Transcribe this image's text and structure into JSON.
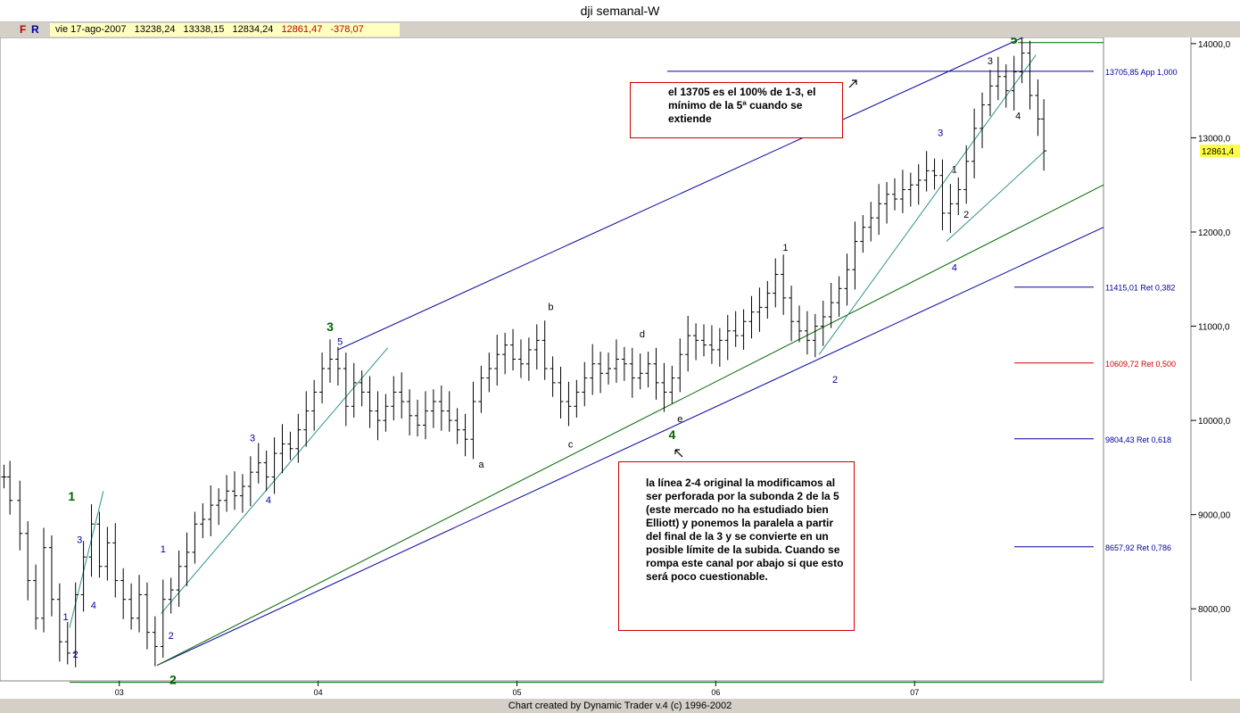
{
  "window": {
    "title": "dji semanal-W"
  },
  "infobar": {
    "f_label": "F",
    "r_label": "R",
    "date": "vie 17-ago-2007",
    "open": "13238,24",
    "high": "13338,15",
    "low": "12834,24",
    "close": "12861,47",
    "change": "-378,07"
  },
  "footer": {
    "text": "Chart created by Dynamic Trader v.4  (c) 1996-2002"
  },
  "annotations": {
    "note1": "el 13705 es el 100% de 1-3, el mínimo de la 5ª cuando se extiende",
    "note2": "la línea 2-4 original la modificamos al ser perforada por la subonda 2 de la 5 (este mercado no ha estudiado bien Elliott) y ponemos la paralela a partir del final de la 3 y se convierte en un posible límite de la subida. Cuando se rompa este canal por abajo si que esto será poco cuestionable."
  },
  "colors": {
    "blue_line": "#0000a0",
    "teal_line": "#2f8f8f",
    "green_line": "#006400",
    "red_line": "#d00000",
    "price_bar": "#000000",
    "close_marker": "#ffff40"
  },
  "chart_data": {
    "type": "bar",
    "title": "dji semanal-W",
    "xlabel": "",
    "ylabel": "",
    "x_ticks": [
      "03",
      "04",
      "05",
      "06",
      "07"
    ],
    "y_ticks": [
      {
        "value": 8000,
        "label": "8000,00"
      },
      {
        "value": 9000,
        "label": "9000,00"
      },
      {
        "value": 10000,
        "label": "10000,0"
      },
      {
        "value": 11000,
        "label": "11000,0"
      },
      {
        "value": 12000,
        "label": "12000,0"
      },
      {
        "value": 13000,
        "label": "13000,0"
      },
      {
        "value": 14000,
        "label": "14000,0"
      }
    ],
    "ylim": [
      7235,
      14065
    ],
    "xlim": [
      2002.4,
      2007.95
    ],
    "grid": false,
    "last_price": {
      "value": 12861.47,
      "label": "12861,4"
    },
    "series": [
      {
        "values": [
          [
            2002.42,
            9400
          ],
          [
            2002.45,
            9150
          ],
          [
            2002.5,
            8800
          ],
          [
            2002.54,
            8300
          ],
          [
            2002.58,
            7900
          ],
          [
            2002.62,
            8650
          ],
          [
            2002.66,
            8100
          ],
          [
            2002.7,
            7650
          ],
          [
            2002.74,
            7530
          ],
          [
            2002.78,
            8150
          ],
          [
            2002.82,
            8550
          ],
          [
            2002.86,
            8900
          ],
          [
            2002.9,
            8450
          ],
          [
            2002.94,
            8700
          ],
          [
            2002.98,
            8300
          ],
          [
            2003.02,
            8100
          ],
          [
            2003.06,
            7900
          ],
          [
            2003.1,
            8150
          ],
          [
            2003.14,
            7750
          ],
          [
            2003.18,
            7600
          ],
          [
            2003.22,
            8100
          ],
          [
            2003.26,
            8200
          ],
          [
            2003.3,
            8450
          ],
          [
            2003.34,
            8600
          ],
          [
            2003.38,
            8900
          ],
          [
            2003.42,
            8950
          ],
          [
            2003.46,
            9100
          ],
          [
            2003.5,
            9150
          ],
          [
            2003.54,
            9250
          ],
          [
            2003.58,
            9200
          ],
          [
            2003.62,
            9300
          ],
          [
            2003.66,
            9450
          ],
          [
            2003.7,
            9550
          ],
          [
            2003.74,
            9400
          ],
          [
            2003.78,
            9650
          ],
          [
            2003.82,
            9750
          ],
          [
            2003.86,
            9700
          ],
          [
            2003.9,
            9900
          ],
          [
            2003.94,
            10100
          ],
          [
            2003.98,
            10300
          ],
          [
            2004.02,
            10550
          ],
          [
            2004.06,
            10650
          ],
          [
            2004.1,
            10550
          ],
          [
            2004.14,
            10150
          ],
          [
            2004.18,
            10400
          ],
          [
            2004.22,
            10300
          ],
          [
            2004.26,
            10100
          ],
          [
            2004.3,
            10000
          ],
          [
            2004.34,
            10150
          ],
          [
            2004.38,
            10300
          ],
          [
            2004.42,
            10200
          ],
          [
            2004.46,
            10050
          ],
          [
            2004.5,
            9950
          ],
          [
            2004.54,
            10100
          ],
          [
            2004.58,
            10200
          ],
          [
            2004.62,
            10100
          ],
          [
            2004.66,
            10000
          ],
          [
            2004.7,
            9900
          ],
          [
            2004.74,
            9800
          ],
          [
            2004.78,
            10200
          ],
          [
            2004.82,
            10450
          ],
          [
            2004.86,
            10550
          ],
          [
            2004.9,
            10700
          ],
          [
            2004.94,
            10800
          ],
          [
            2004.98,
            10650
          ],
          [
            2005.02,
            10600
          ],
          [
            2005.06,
            10750
          ],
          [
            2005.1,
            10850
          ],
          [
            2005.14,
            10550
          ],
          [
            2005.18,
            10400
          ],
          [
            2005.22,
            10200
          ],
          [
            2005.26,
            10150
          ],
          [
            2005.3,
            10300
          ],
          [
            2005.34,
            10450
          ],
          [
            2005.38,
            10600
          ],
          [
            2005.42,
            10500
          ],
          [
            2005.46,
            10550
          ],
          [
            2005.5,
            10650
          ],
          [
            2005.54,
            10600
          ],
          [
            2005.58,
            10450
          ],
          [
            2005.62,
            10500
          ],
          [
            2005.66,
            10600
          ],
          [
            2005.7,
            10400
          ],
          [
            2005.74,
            10300
          ],
          [
            2005.78,
            10450
          ],
          [
            2005.82,
            10700
          ],
          [
            2005.86,
            10900
          ],
          [
            2005.9,
            10850
          ],
          [
            2005.94,
            10800
          ],
          [
            2005.98,
            10750
          ],
          [
            2006.02,
            10850
          ],
          [
            2006.06,
            10950
          ],
          [
            2006.1,
            10900
          ],
          [
            2006.14,
            11050
          ],
          [
            2006.18,
            11150
          ],
          [
            2006.22,
            11200
          ],
          [
            2006.26,
            11350
          ],
          [
            2006.3,
            11550
          ],
          [
            2006.34,
            11300
          ],
          [
            2006.38,
            11050
          ],
          [
            2006.42,
            10950
          ],
          [
            2006.46,
            10850
          ],
          [
            2006.5,
            11000
          ],
          [
            2006.54,
            11100
          ],
          [
            2006.58,
            11250
          ],
          [
            2006.62,
            11400
          ],
          [
            2006.66,
            11600
          ],
          [
            2006.7,
            11900
          ],
          [
            2006.74,
            12050
          ],
          [
            2006.78,
            12150
          ],
          [
            2006.82,
            12300
          ],
          [
            2006.86,
            12400
          ],
          [
            2006.9,
            12350
          ],
          [
            2006.94,
            12450
          ],
          [
            2006.98,
            12500
          ],
          [
            2007.02,
            12550
          ],
          [
            2007.06,
            12650
          ],
          [
            2007.1,
            12600
          ],
          [
            2007.14,
            12200
          ],
          [
            2007.18,
            12300
          ],
          [
            2007.22,
            12450
          ],
          [
            2007.26,
            12750
          ],
          [
            2007.3,
            13100
          ],
          [
            2007.34,
            13350
          ],
          [
            2007.38,
            13550
          ],
          [
            2007.42,
            13650
          ],
          [
            2007.46,
            13500
          ],
          [
            2007.5,
            13700
          ],
          [
            2007.54,
            13900
          ],
          [
            2007.58,
            13450
          ],
          [
            2007.62,
            13200
          ],
          [
            2007.65,
            12861
          ]
        ]
      }
    ],
    "fib_levels": [
      {
        "value": 13705.85,
        "label": "13705,85 App 1,000",
        "color": "#0000a0"
      },
      {
        "value": 11415.01,
        "label": "11415,01 Ret 0,382",
        "color": "#0000a0"
      },
      {
        "value": 10609.72,
        "label": "10609,72 Ret 0,500",
        "color": "#d00000"
      },
      {
        "value": 9804.43,
        "label": "9804,43 Ret 0,618",
        "color": "#0000a0"
      },
      {
        "value": 8657.92,
        "label": "8657,92 Ret 0,786",
        "color": "#0000a0"
      }
    ],
    "wave_labels": [
      {
        "text": "1",
        "x": 2002.76,
        "y": 9150,
        "color": "#006400",
        "size": 14
      },
      {
        "text": "2",
        "x": 2003.27,
        "y": 7200,
        "color": "#006400",
        "size": 14
      },
      {
        "text": "3",
        "x": 2004.06,
        "y": 10950,
        "color": "#006400",
        "size": 14
      },
      {
        "text": "4",
        "x": 2005.78,
        "y": 9800,
        "color": "#006400",
        "size": 14
      },
      {
        "text": "5",
        "x": 2007.5,
        "y": 14000,
        "color": "#006400",
        "size": 14
      },
      {
        "text": "1",
        "x": 2002.73,
        "y": 7880,
        "color": "#0000a0",
        "size": 11
      },
      {
        "text": "2",
        "x": 2002.78,
        "y": 7480,
        "color": "#0000a0",
        "size": 11
      },
      {
        "text": "3",
        "x": 2002.8,
        "y": 8700,
        "color": "#0000a0",
        "size": 11
      },
      {
        "text": "4",
        "x": 2002.87,
        "y": 8000,
        "color": "#0000a0",
        "size": 11
      },
      {
        "text": "1",
        "x": 2003.22,
        "y": 8600,
        "color": "#0000a0",
        "size": 11
      },
      {
        "text": "2",
        "x": 2003.26,
        "y": 7680,
        "color": "#0000a0",
        "size": 11
      },
      {
        "text": "3",
        "x": 2003.67,
        "y": 9780,
        "color": "#0000a0",
        "size": 11
      },
      {
        "text": "4",
        "x": 2003.75,
        "y": 9120,
        "color": "#0000a0",
        "size": 11
      },
      {
        "text": "5",
        "x": 2004.11,
        "y": 10800,
        "color": "#0000a0",
        "size": 11
      },
      {
        "text": "1",
        "x": 2006.35,
        "y": 11800,
        "color": "#000000",
        "size": 11
      },
      {
        "text": "2",
        "x": 2006.6,
        "y": 10400,
        "color": "#0000a0",
        "size": 11
      },
      {
        "text": "3",
        "x": 2007.13,
        "y": 13020,
        "color": "#0000a0",
        "size": 11
      },
      {
        "text": "4",
        "x": 2007.2,
        "y": 11590,
        "color": "#0000a0",
        "size": 11
      },
      {
        "text": "1",
        "x": 2007.2,
        "y": 12630,
        "color": "#000000",
        "size": 11
      },
      {
        "text": "2",
        "x": 2007.26,
        "y": 12150,
        "color": "#000000",
        "size": 11
      },
      {
        "text": "3",
        "x": 2007.38,
        "y": 13780,
        "color": "#000000",
        "size": 11
      },
      {
        "text": "4",
        "x": 2007.52,
        "y": 13200,
        "color": "#000000",
        "size": 11
      },
      {
        "text": "a",
        "x": 2004.82,
        "y": 9500,
        "color": "#000000",
        "size": 11
      },
      {
        "text": "b",
        "x": 2005.17,
        "y": 11170,
        "color": "#000000",
        "size": 11
      },
      {
        "text": "c",
        "x": 2005.27,
        "y": 9710,
        "color": "#000000",
        "size": 11
      },
      {
        "text": "d",
        "x": 2005.63,
        "y": 10880,
        "color": "#000000",
        "size": 11
      },
      {
        "text": "e",
        "x": 2005.82,
        "y": 9980,
        "color": "#000000",
        "size": 11
      }
    ],
    "trend_lines": [
      {
        "x1": 2004.1,
        "y1": 10750,
        "x2": 2007.55,
        "y2": 14070,
        "color": "#0000a0"
      },
      {
        "x1": 2003.19,
        "y1": 7400,
        "x2": 2007.95,
        "y2": 12050,
        "color": "#0000a0"
      },
      {
        "x1": 2003.19,
        "y1": 7400,
        "x2": 2007.95,
        "y2": 12500,
        "color": "#006400"
      },
      {
        "x1": 2006.52,
        "y1": 10700,
        "x2": 2007.61,
        "y2": 13880,
        "color": "#2f8f8f"
      },
      {
        "x1": 2007.16,
        "y1": 11900,
        "x2": 2007.65,
        "y2": 12850,
        "color": "#2f8f8f"
      },
      {
        "x1": 2002.75,
        "y1": 7800,
        "x2": 2002.92,
        "y2": 9250,
        "color": "#2f8f8f"
      },
      {
        "x1": 2003.21,
        "y1": 7950,
        "x2": 2004.35,
        "y2": 10770,
        "color": "#2f8f8f"
      },
      {
        "x1": 2002.75,
        "y1": 7220,
        "x2": 2007.95,
        "y2": 7220,
        "color": "#006400"
      },
      {
        "x1": 2007.52,
        "y1": 14010,
        "x2": 2007.95,
        "y2": 14010,
        "color": "#006400"
      }
    ]
  }
}
